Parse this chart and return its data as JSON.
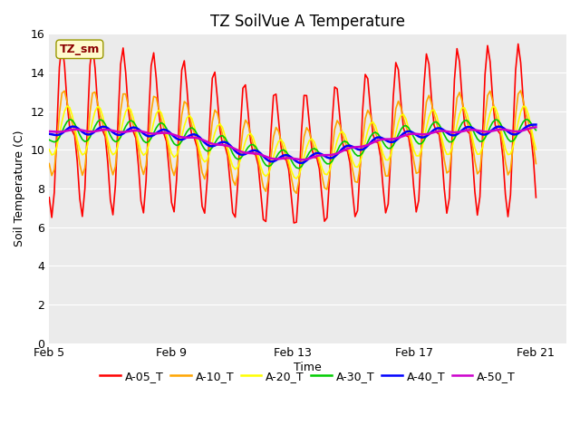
{
  "title": "TZ SoilVue A Temperature",
  "ylabel": "Soil Temperature (C)",
  "xlabel": "Time",
  "annotation_label": "TZ_sm",
  "annotation_color": "#8B0000",
  "annotation_bg": "#FFFACD",
  "ylim": [
    0,
    16
  ],
  "yticks": [
    0,
    2,
    4,
    6,
    8,
    10,
    12,
    14,
    16
  ],
  "x_tick_labels": [
    "Feb 5",
    "Feb 9",
    "Feb 13",
    "Feb 17",
    "Feb 21"
  ],
  "x_tick_positions": [
    4,
    8,
    12,
    16,
    20
  ],
  "total_days": 16,
  "n_points": 192,
  "series_colors": {
    "A-05_T": "#FF0000",
    "A-10_T": "#FFA500",
    "A-20_T": "#FFFF00",
    "A-30_T": "#00CC00",
    "A-40_T": "#0000FF",
    "A-50_T": "#CC00CC"
  },
  "plot_bg_color": "#EBEBEB",
  "fig_bg_color": "#FFFFFF",
  "grid_color": "#FFFFFF",
  "title_fontsize": 12,
  "axis_label_fontsize": 9,
  "tick_fontsize": 9,
  "legend_fontsize": 9,
  "lw": 1.2,
  "lw_deep": 1.8
}
